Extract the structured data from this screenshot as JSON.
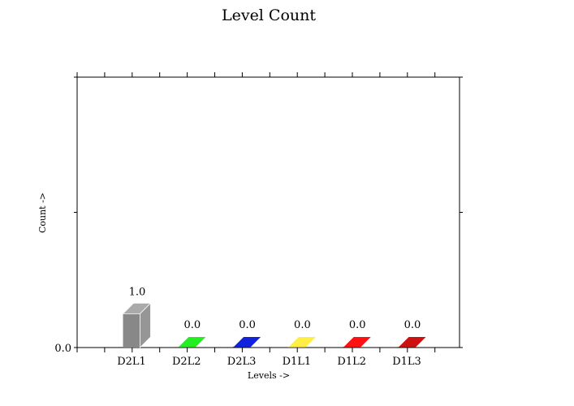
{
  "chart_data": {
    "type": "bar",
    "title": "Level Count",
    "xlabel": "Levels ->",
    "ylabel": "Count ->",
    "categories": [
      "D2L1",
      "D2L2",
      "D2L3",
      "D1L1",
      "D1L2",
      "D1L3"
    ],
    "values": [
      1.0,
      0.0,
      0.0,
      0.0,
      0.0,
      0.0
    ],
    "data_labels": [
      "1.0",
      "0.0",
      "0.0",
      "0.0",
      "0.0",
      "0.0"
    ],
    "colors": [
      "#888888",
      "#22ee22",
      "#1122dd",
      "#ffee44",
      "#ff1111",
      "#cc1111"
    ],
    "y_tick_labels": [
      "0.0"
    ],
    "ylim": [
      0,
      8
    ],
    "grid": false,
    "bar_style": "3d"
  }
}
